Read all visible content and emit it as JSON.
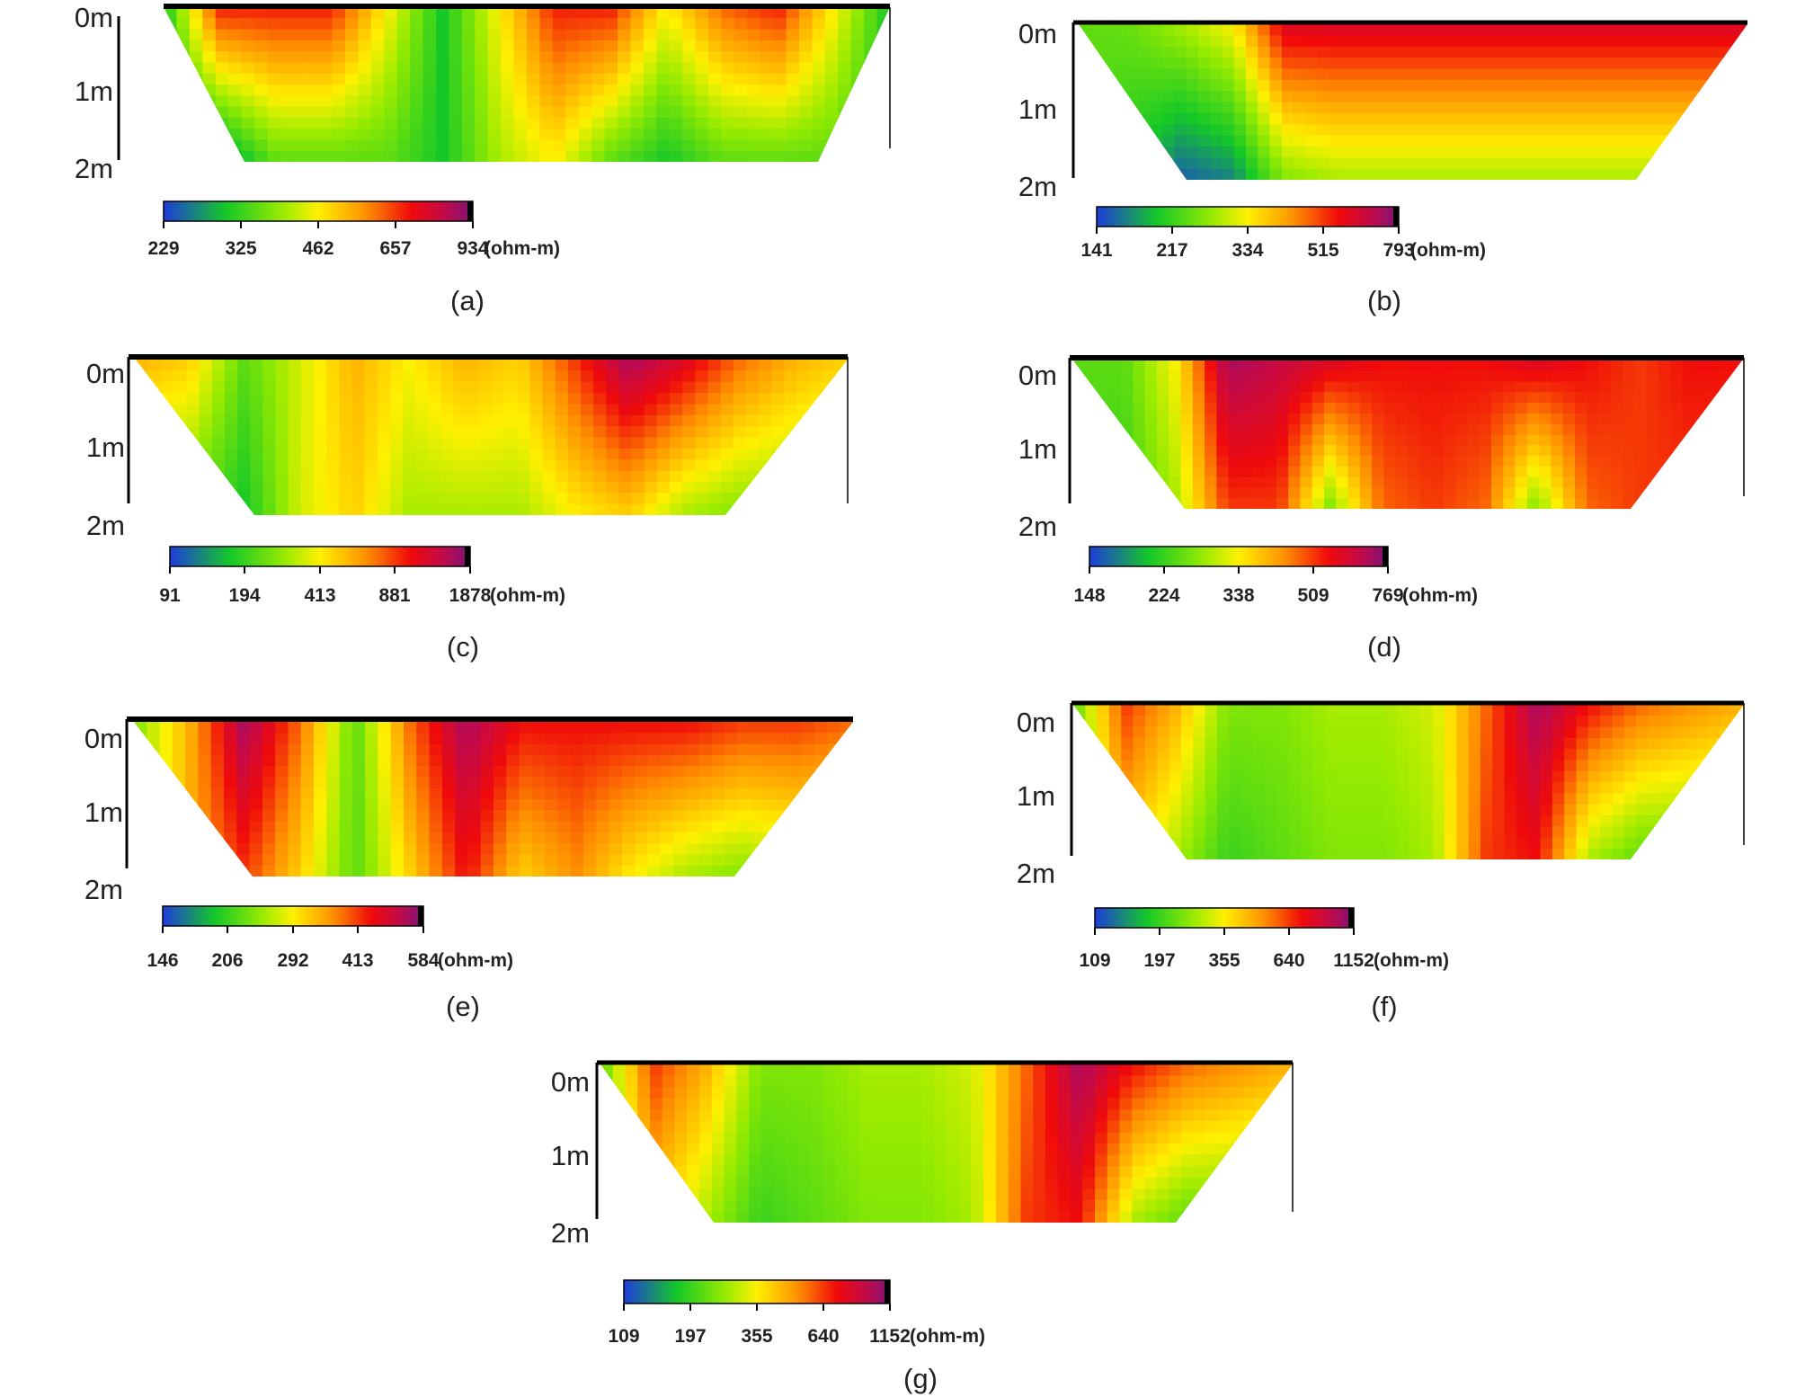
{
  "chart_data": [
    {
      "type": "heatmap",
      "panel_label": "(a)",
      "depth_labels": [
        "0m",
        "1m",
        "2m"
      ],
      "colorbar_ticks": [
        "229",
        "325",
        "462",
        "657",
        "934"
      ],
      "unit": "(ohm-m)",
      "colorbar_range": [
        229,
        934
      ],
      "profile_range": [
        0,
        1
      ],
      "depth_range": [
        0,
        2
      ],
      "top_band": [
        0.2,
        0.78,
        0.78,
        0.78,
        0.5,
        0.2,
        0.5,
        0.78,
        0.78,
        0.5,
        0.7,
        0.78,
        0.5,
        0.2
      ],
      "bottom_band": [
        0.2,
        0.1,
        0.3,
        0.3,
        0.3,
        0.2,
        0.4,
        0.5,
        0.3,
        0.2,
        0.3,
        0.3,
        0.3,
        0.2
      ]
    },
    {
      "type": "heatmap",
      "panel_label": "(b)",
      "depth_labels": [
        "0m",
        "1m",
        "2m"
      ],
      "colorbar_ticks": [
        "141",
        "217",
        "334",
        "515",
        "793"
      ],
      "unit": "(ohm-m)",
      "colorbar_range": [
        141,
        793
      ],
      "profile_range": [
        0,
        1
      ],
      "depth_range": [
        0,
        2
      ],
      "top_band": [
        0.3,
        0.32,
        0.4,
        0.5,
        0.85,
        0.85,
        0.85,
        0.85,
        0.85,
        0.85,
        0.85,
        0.85,
        0.85,
        0.85
      ],
      "bottom_band": [
        0.3,
        0.2,
        0.05,
        0.1,
        0.35,
        0.4,
        0.4,
        0.4,
        0.4,
        0.4,
        0.4,
        0.4,
        0.4,
        0.4
      ]
    },
    {
      "type": "heatmap",
      "panel_label": "(c)",
      "depth_labels": [
        "0m",
        "1m",
        "2m"
      ],
      "colorbar_ticks": [
        "91",
        "194",
        "413",
        "881",
        "1878"
      ],
      "unit": "(ohm-m)",
      "colorbar_range": [
        91,
        1878
      ],
      "profile_range": [
        0,
        1
      ],
      "depth_range": [
        0,
        2
      ],
      "top_band": [
        0.6,
        0.55,
        0.3,
        0.45,
        0.6,
        0.5,
        0.6,
        0.55,
        0.75,
        0.95,
        0.85,
        0.7,
        0.6,
        0.55
      ],
      "bottom_band": [
        0.3,
        0.3,
        0.2,
        0.45,
        0.55,
        0.4,
        0.4,
        0.4,
        0.5,
        0.55,
        0.4,
        0.35,
        0.35,
        0.3
      ]
    },
    {
      "type": "heatmap",
      "panel_label": "(d)",
      "depth_labels": [
        "0m",
        "1m",
        "2m"
      ],
      "colorbar_ticks": [
        "148",
        "224",
        "338",
        "509",
        "769"
      ],
      "unit": "(ohm-m)",
      "colorbar_range": [
        148,
        769
      ],
      "profile_range": [
        0,
        1
      ],
      "depth_range": [
        0,
        2
      ],
      "top_band": [
        0.3,
        0.3,
        0.5,
        0.95,
        0.9,
        0.85,
        0.8,
        0.8,
        0.8,
        0.85,
        0.8,
        0.75,
        0.8,
        0.8
      ],
      "bottom_band": [
        0.25,
        0.25,
        0.4,
        0.75,
        0.75,
        0.35,
        0.7,
        0.75,
        0.7,
        0.35,
        0.7,
        0.75,
        0.75,
        0.7
      ]
    },
    {
      "type": "heatmap",
      "panel_label": "(e)",
      "depth_labels": [
        "0m",
        "1m",
        "2m"
      ],
      "colorbar_ticks": [
        "146",
        "206",
        "292",
        "413",
        "584"
      ],
      "unit": "(ohm-m)",
      "colorbar_range": [
        146,
        584
      ],
      "profile_range": [
        0,
        1
      ],
      "depth_range": [
        0,
        2
      ],
      "top_band": [
        0.35,
        0.6,
        0.95,
        0.7,
        0.3,
        0.7,
        0.95,
        0.8,
        0.8,
        0.8,
        0.8,
        0.75,
        0.75,
        0.7
      ],
      "bottom_band": [
        0.35,
        0.6,
        0.75,
        0.55,
        0.3,
        0.55,
        0.8,
        0.55,
        0.65,
        0.5,
        0.4,
        0.35,
        0.4,
        0.4
      ]
    },
    {
      "type": "heatmap",
      "panel_label": "(f)",
      "depth_labels": [
        "0m",
        "1m",
        "2m"
      ],
      "colorbar_ticks": [
        "109",
        "197",
        "355",
        "640",
        "1152"
      ],
      "unit": "(ohm-m)",
      "colorbar_range": [
        109,
        1152
      ],
      "profile_range": [
        0,
        1
      ],
      "depth_range": [
        0,
        2
      ],
      "top_band": [
        0.3,
        0.75,
        0.6,
        0.35,
        0.35,
        0.4,
        0.4,
        0.45,
        0.7,
        0.95,
        0.8,
        0.7,
        0.65,
        0.6
      ],
      "bottom_band": [
        0.3,
        0.55,
        0.4,
        0.25,
        0.3,
        0.35,
        0.35,
        0.4,
        0.75,
        0.8,
        0.4,
        0.3,
        0.3,
        0.3
      ]
    },
    {
      "type": "heatmap",
      "panel_label": "(g)",
      "depth_labels": [
        "0m",
        "1m",
        "2m"
      ],
      "colorbar_ticks": [
        "109",
        "197",
        "355",
        "640",
        "1152"
      ],
      "unit": "(ohm-m)",
      "colorbar_range": [
        109,
        1152
      ],
      "profile_range": [
        0,
        1
      ],
      "depth_range": [
        0,
        2
      ],
      "top_band": [
        0.3,
        0.75,
        0.6,
        0.35,
        0.35,
        0.4,
        0.4,
        0.45,
        0.7,
        0.95,
        0.8,
        0.7,
        0.65,
        0.6
      ],
      "bottom_band": [
        0.3,
        0.55,
        0.4,
        0.25,
        0.3,
        0.35,
        0.35,
        0.4,
        0.75,
        0.8,
        0.4,
        0.3,
        0.3,
        0.3
      ]
    }
  ]
}
